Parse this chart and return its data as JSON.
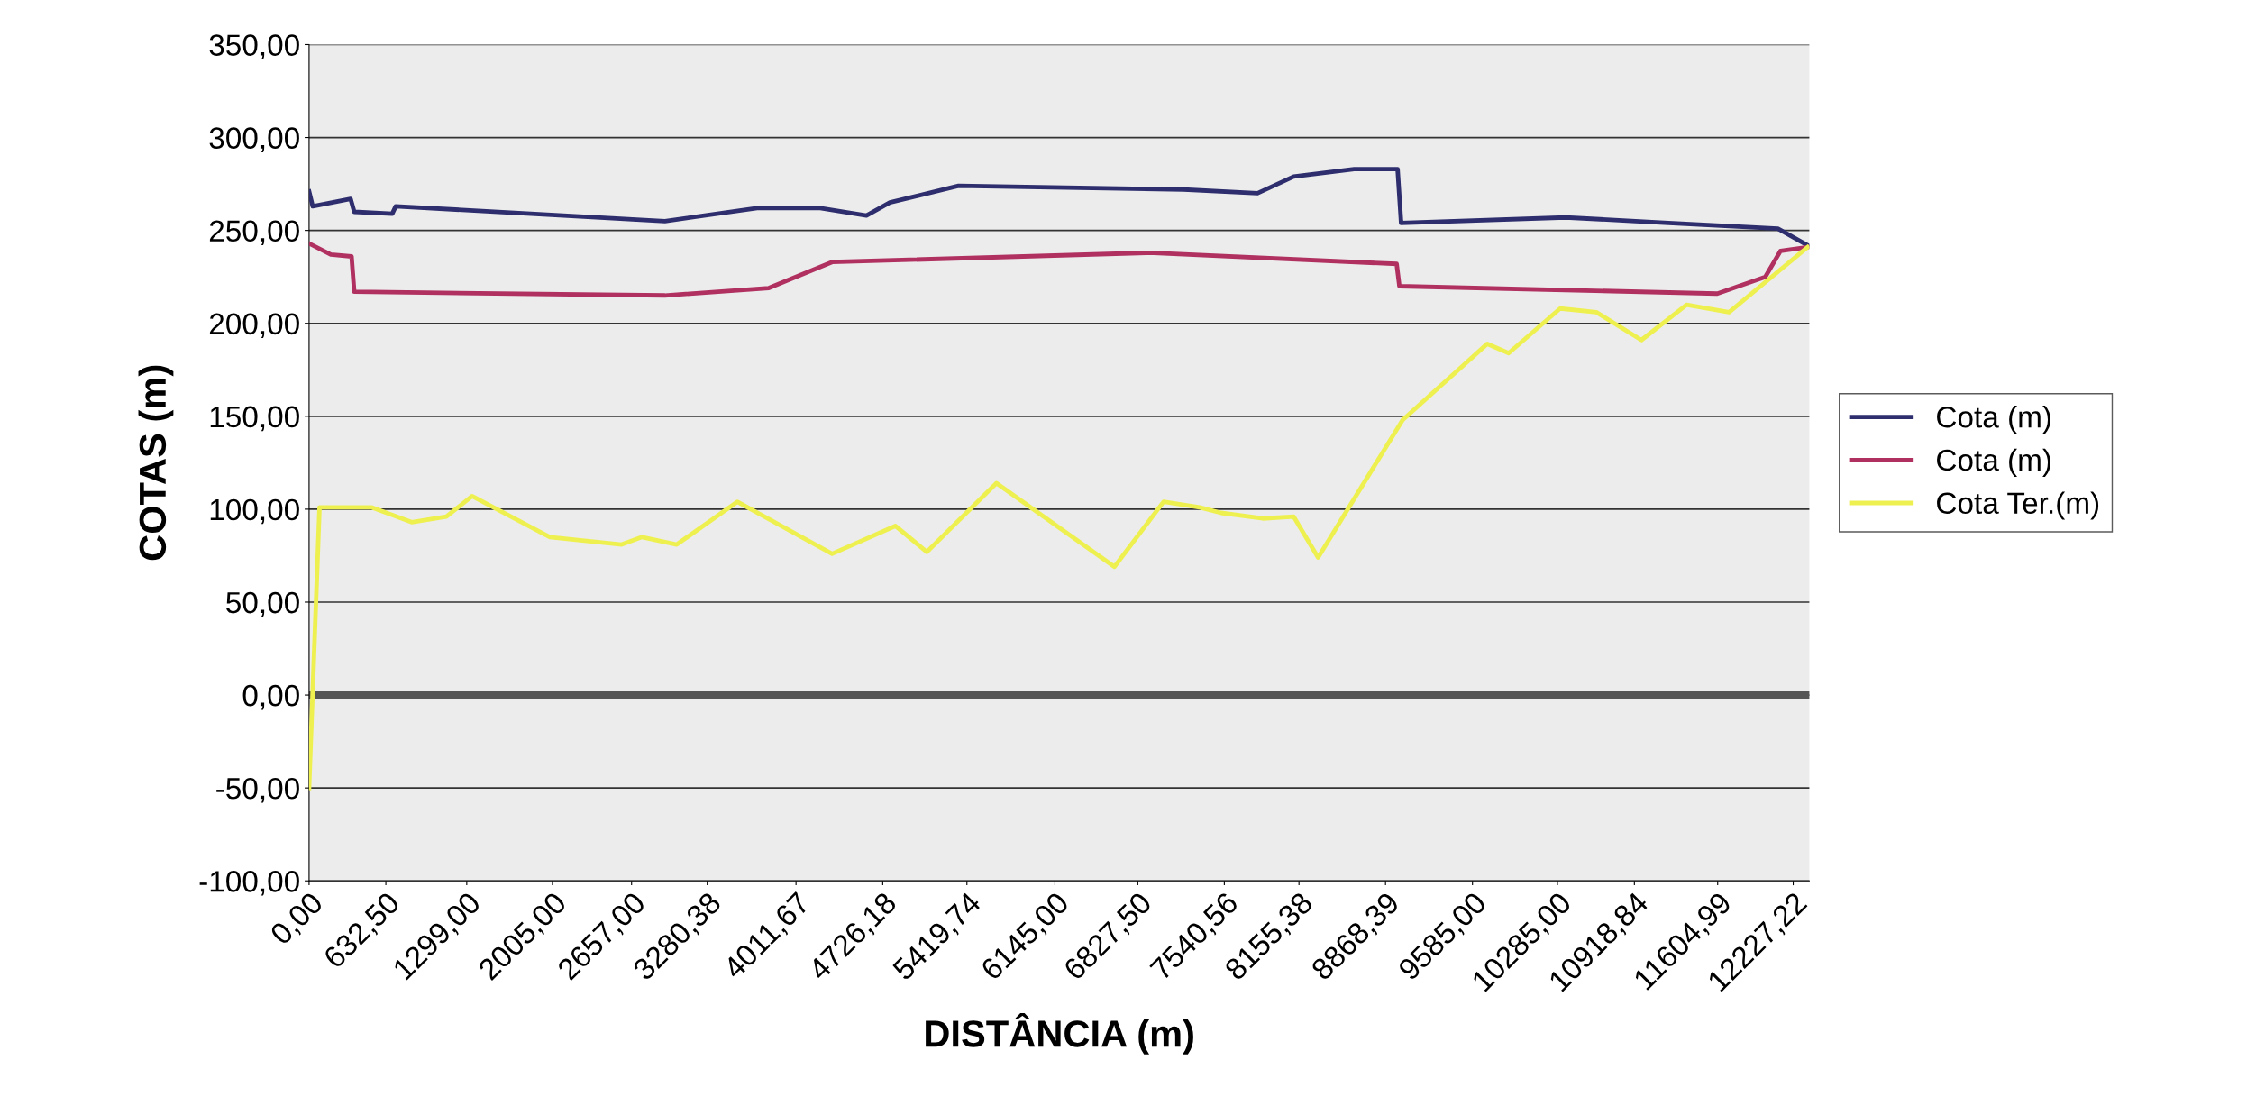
{
  "chart_data": {
    "type": "line",
    "xlabel": "DISTÂNCIA (m)",
    "ylabel": "COTAS (m)",
    "xlim": [
      0,
      12360
    ],
    "ylim": [
      -100,
      350
    ],
    "xticks": [
      {
        "value": 0,
        "label": "0,00"
      },
      {
        "value": 632.5,
        "label": "632,50"
      },
      {
        "value": 1299,
        "label": "1299,00"
      },
      {
        "value": 2005,
        "label": "2005,00"
      },
      {
        "value": 2657,
        "label": "2657,00"
      },
      {
        "value": 3280.38,
        "label": "3280,38"
      },
      {
        "value": 4011.67,
        "label": "4011,67"
      },
      {
        "value": 4726.18,
        "label": "4726,18"
      },
      {
        "value": 5419.74,
        "label": "5419,74"
      },
      {
        "value": 6145,
        "label": "6145,00"
      },
      {
        "value": 6827.5,
        "label": "6827,50"
      },
      {
        "value": 7540.56,
        "label": "7540,56"
      },
      {
        "value": 8155.38,
        "label": "8155,38"
      },
      {
        "value": 8868.39,
        "label": "8868,39"
      },
      {
        "value": 9585,
        "label": "9585,00"
      },
      {
        "value": 10285,
        "label": "10285,00"
      },
      {
        "value": 10918.84,
        "label": "10918,84"
      },
      {
        "value": 11604.99,
        "label": "11604,99"
      },
      {
        "value": 12227.22,
        "label": "12227,22"
      }
    ],
    "yticks": [
      {
        "value": -100,
        "label": "-100,00"
      },
      {
        "value": -50,
        "label": "-50,00"
      },
      {
        "value": 0,
        "label": "0,00"
      },
      {
        "value": 50,
        "label": "50,00"
      },
      {
        "value": 100,
        "label": "100,00"
      },
      {
        "value": 150,
        "label": "150,00"
      },
      {
        "value": 200,
        "label": "200,00"
      },
      {
        "value": 250,
        "label": "250,00"
      },
      {
        "value": 300,
        "label": "300,00"
      },
      {
        "value": 350,
        "label": "350,00"
      }
    ],
    "grid": "y",
    "legend": "right",
    "marker": "none",
    "line_style": "solid",
    "ref_lines": [
      {
        "axis": "y",
        "value": 0,
        "color": "#555555"
      }
    ],
    "series": [
      {
        "name": "Cota (m)",
        "color": "#2e2e6e",
        "x": [
          0,
          30,
          342,
          372,
          685,
          714,
          2932,
          3691,
          4212,
          4592,
          4785,
          5351,
          7204,
          7814,
          8112,
          8610,
          8968,
          8997,
          10352,
          11200,
          12101,
          12346
        ],
        "values": [
          271,
          263,
          267,
          260,
          259,
          263,
          255,
          262,
          262,
          258,
          265,
          274,
          272,
          270,
          279,
          283,
          283,
          254,
          257,
          254,
          251,
          242
        ]
      },
      {
        "name": "Cota (m)",
        "color": "#b03060",
        "x": [
          0,
          179,
          350,
          372,
          2932,
          3788,
          4309,
          6921,
          8960,
          8983,
          11602,
          11997,
          12123,
          12346
        ],
        "values": [
          243,
          237,
          236,
          217,
          215,
          219,
          233,
          238,
          232,
          220,
          216,
          225,
          239,
          241
        ]
      },
      {
        "name": "Cota Ter.(m)",
        "color": "#eef050",
        "x": [
          0,
          86,
          513,
          845,
          1131,
          1343,
          1984,
          2575,
          2743,
          3029,
          3528,
          4309,
          4830,
          5090,
          5663,
          6635,
          7040,
          7338,
          7513,
          7859,
          8112,
          8313,
          9009,
          9707,
          9883,
          10307,
          10605,
          10977,
          11349,
          11699,
          12346
        ],
        "values": [
          -50,
          101,
          101,
          93,
          96,
          107,
          85,
          81,
          85,
          81,
          104,
          76,
          91,
          77,
          114,
          69,
          104,
          101,
          98,
          95,
          96,
          74,
          148,
          189,
          184,
          208,
          206,
          191,
          210,
          206,
          241
        ]
      }
    ]
  }
}
